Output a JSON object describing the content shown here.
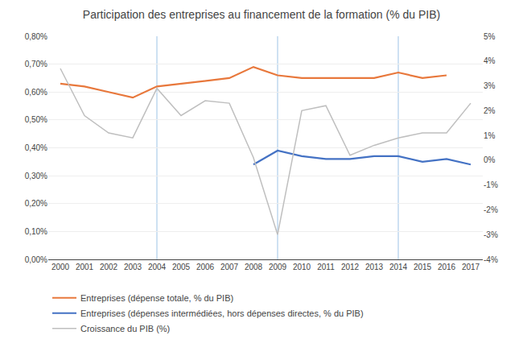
{
  "chart_data": {
    "type": "line",
    "title": "Participation des entreprises au financement de la formation (% du PIB)",
    "x": [
      2000,
      2001,
      2002,
      2003,
      2004,
      2005,
      2006,
      2007,
      2008,
      2009,
      2010,
      2011,
      2012,
      2013,
      2014,
      2015,
      2016,
      2017
    ],
    "series": [
      {
        "name": "Entreprises (dépense totale, % du PIB)",
        "color": "#E8783C",
        "values": [
          0.0063,
          0.0062,
          0.006,
          0.0058,
          0.0062,
          0.0063,
          0.0064,
          0.0065,
          0.0069,
          0.0066,
          0.0065,
          0.0065,
          0.0065,
          0.0065,
          0.0067,
          0.0065,
          0.0066,
          null
        ]
      },
      {
        "name": "Entreprises (dépenses intermédiées, hors dépenses directes, % du PIB)",
        "color": "#4472C4",
        "values": [
          null,
          null,
          null,
          null,
          null,
          null,
          null,
          null,
          0.0034,
          0.0039,
          0.0037,
          0.0036,
          0.0036,
          0.0037,
          0.0037,
          0.0035,
          0.0036,
          0.0034
        ]
      },
      {
        "name": "Croissance du PIB (%)",
        "color": "#BFBFBF",
        "axis": "y2",
        "values": [
          0.037,
          0.018,
          0.011,
          0.009,
          0.029,
          0.018,
          0.024,
          0.023,
          0.001,
          -0.03,
          0.02,
          0.022,
          0.002,
          0.006,
          0.009,
          0.011,
          0.011,
          0.023
        ]
      }
    ],
    "vlines": {
      "x": [
        2004,
        2009,
        2014
      ],
      "color": "#9DC3E6"
    },
    "xlim": [
      1999.5,
      2017.5
    ],
    "xticks": [
      2000,
      2001,
      2002,
      2003,
      2004,
      2005,
      2006,
      2007,
      2008,
      2009,
      2010,
      2011,
      2012,
      2013,
      2014,
      2015,
      2016,
      2017
    ],
    "ylim": [
      0.0,
      0.008
    ],
    "yticks": [
      {
        "value": 0.0,
        "label": "0,00%"
      },
      {
        "value": 0.001,
        "label": "0,10%"
      },
      {
        "value": 0.002,
        "label": "0,20%"
      },
      {
        "value": 0.003,
        "label": "0,30%"
      },
      {
        "value": 0.004,
        "label": "0,40%"
      },
      {
        "value": 0.005,
        "label": "0,50%"
      },
      {
        "value": 0.006,
        "label": "0,60%"
      },
      {
        "value": 0.007,
        "label": "0,70%"
      },
      {
        "value": 0.008,
        "label": "0,80%"
      }
    ],
    "y2lim": [
      -0.04,
      0.05
    ],
    "y2ticks": [
      {
        "value": -0.04,
        "label": "-4%"
      },
      {
        "value": -0.03,
        "label": "-3%"
      },
      {
        "value": -0.02,
        "label": "-2%"
      },
      {
        "value": -0.01,
        "label": "-1%"
      },
      {
        "value": 0.0,
        "label": "0%"
      },
      {
        "value": 0.01,
        "label": "1%"
      },
      {
        "value": 0.02,
        "label": "2%"
      },
      {
        "value": 0.03,
        "label": "3%"
      },
      {
        "value": 0.04,
        "label": "4%"
      },
      {
        "value": 0.05,
        "label": "5%"
      }
    ],
    "grid": true,
    "legend": "bottom"
  }
}
